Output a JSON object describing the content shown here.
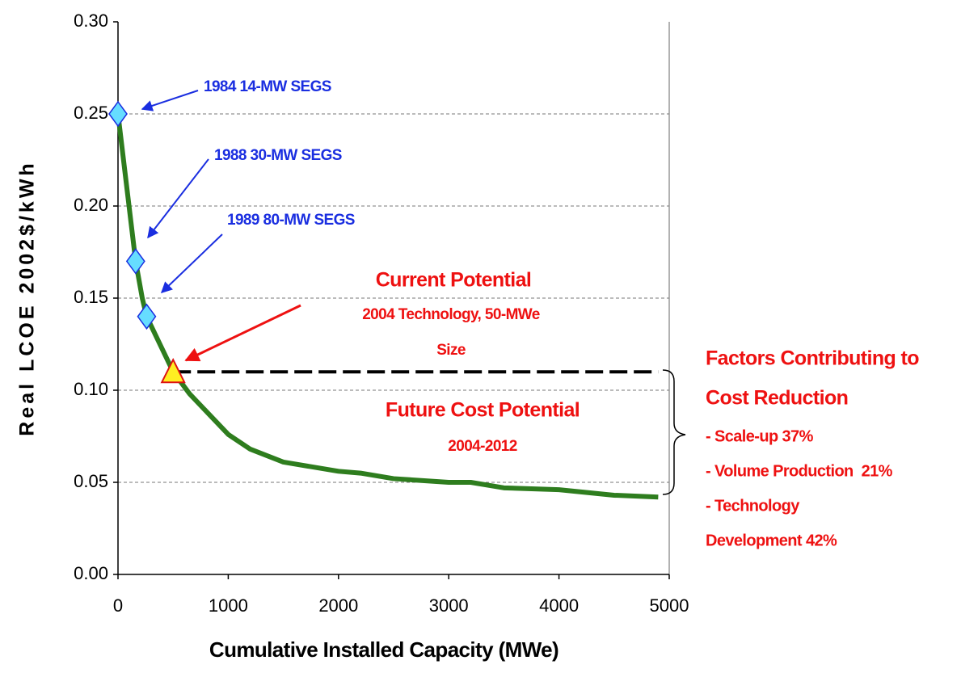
{
  "chart_data": {
    "type": "line",
    "xlabel": "Cumulative Installed Capacity (MWe)",
    "ylabel": "Real LCOE 2002$/kWh",
    "xlim": [
      0,
      5000
    ],
    "xticks": [
      0,
      1000,
      2000,
      3000,
      4000,
      5000
    ],
    "ylim": [
      0,
      0.3
    ],
    "yticks": [
      {
        "value": 0,
        "label": "0.00"
      },
      0.05,
      {
        "value": 0.1,
        "label": "0.10"
      },
      0.15,
      {
        "value": 0.2,
        "label": "0.20"
      },
      0.25,
      {
        "value": 0.3,
        "label": "0.30"
      }
    ],
    "grid": true,
    "series": [
      {
        "color": "#2e7d1e",
        "style": "solid",
        "marker": "none",
        "x": [
          0,
          100,
          160,
          220,
          260,
          500,
          650,
          1000,
          1200,
          1500,
          2000,
          2200,
          2500,
          3000,
          3200,
          3500,
          4000,
          4500,
          4900
        ],
        "values": [
          0.25,
          0.2,
          0.17,
          0.15,
          0.14,
          0.11,
          0.098,
          0.076,
          0.068,
          0.061,
          0.056,
          0.055,
          0.052,
          0.05,
          0.05,
          0.047,
          0.046,
          0.043,
          0.042
        ]
      },
      {
        "color": "#000000",
        "style": "dashed",
        "marker": "none",
        "x": [
          500,
          4900
        ],
        "values": [
          0.11,
          0.11
        ]
      },
      {
        "color": "#66ddff",
        "style": "none",
        "marker": "diamond",
        "x": [
          0,
          160,
          260
        ],
        "values": [
          0.25,
          0.17,
          0.14
        ]
      },
      {
        "color": "#ffee22",
        "style": "none",
        "marker": "triangle",
        "x": [
          500
        ],
        "values": [
          0.11
        ]
      }
    ],
    "annotations": [
      "1984 14-MW SEGS",
      "1988 30-MW SEGS",
      "1989 80-MW SEGS",
      "Current Potential",
      "2004 Technology, 50-MWe",
      "Size",
      "Future Cost Potential",
      "2004-2012",
      "Factors Contributing to",
      "Cost Reduction",
      "- Scale-up 37%",
      "- Volume Production  21%",
      "- Technology",
      "Development 42%"
    ]
  }
}
